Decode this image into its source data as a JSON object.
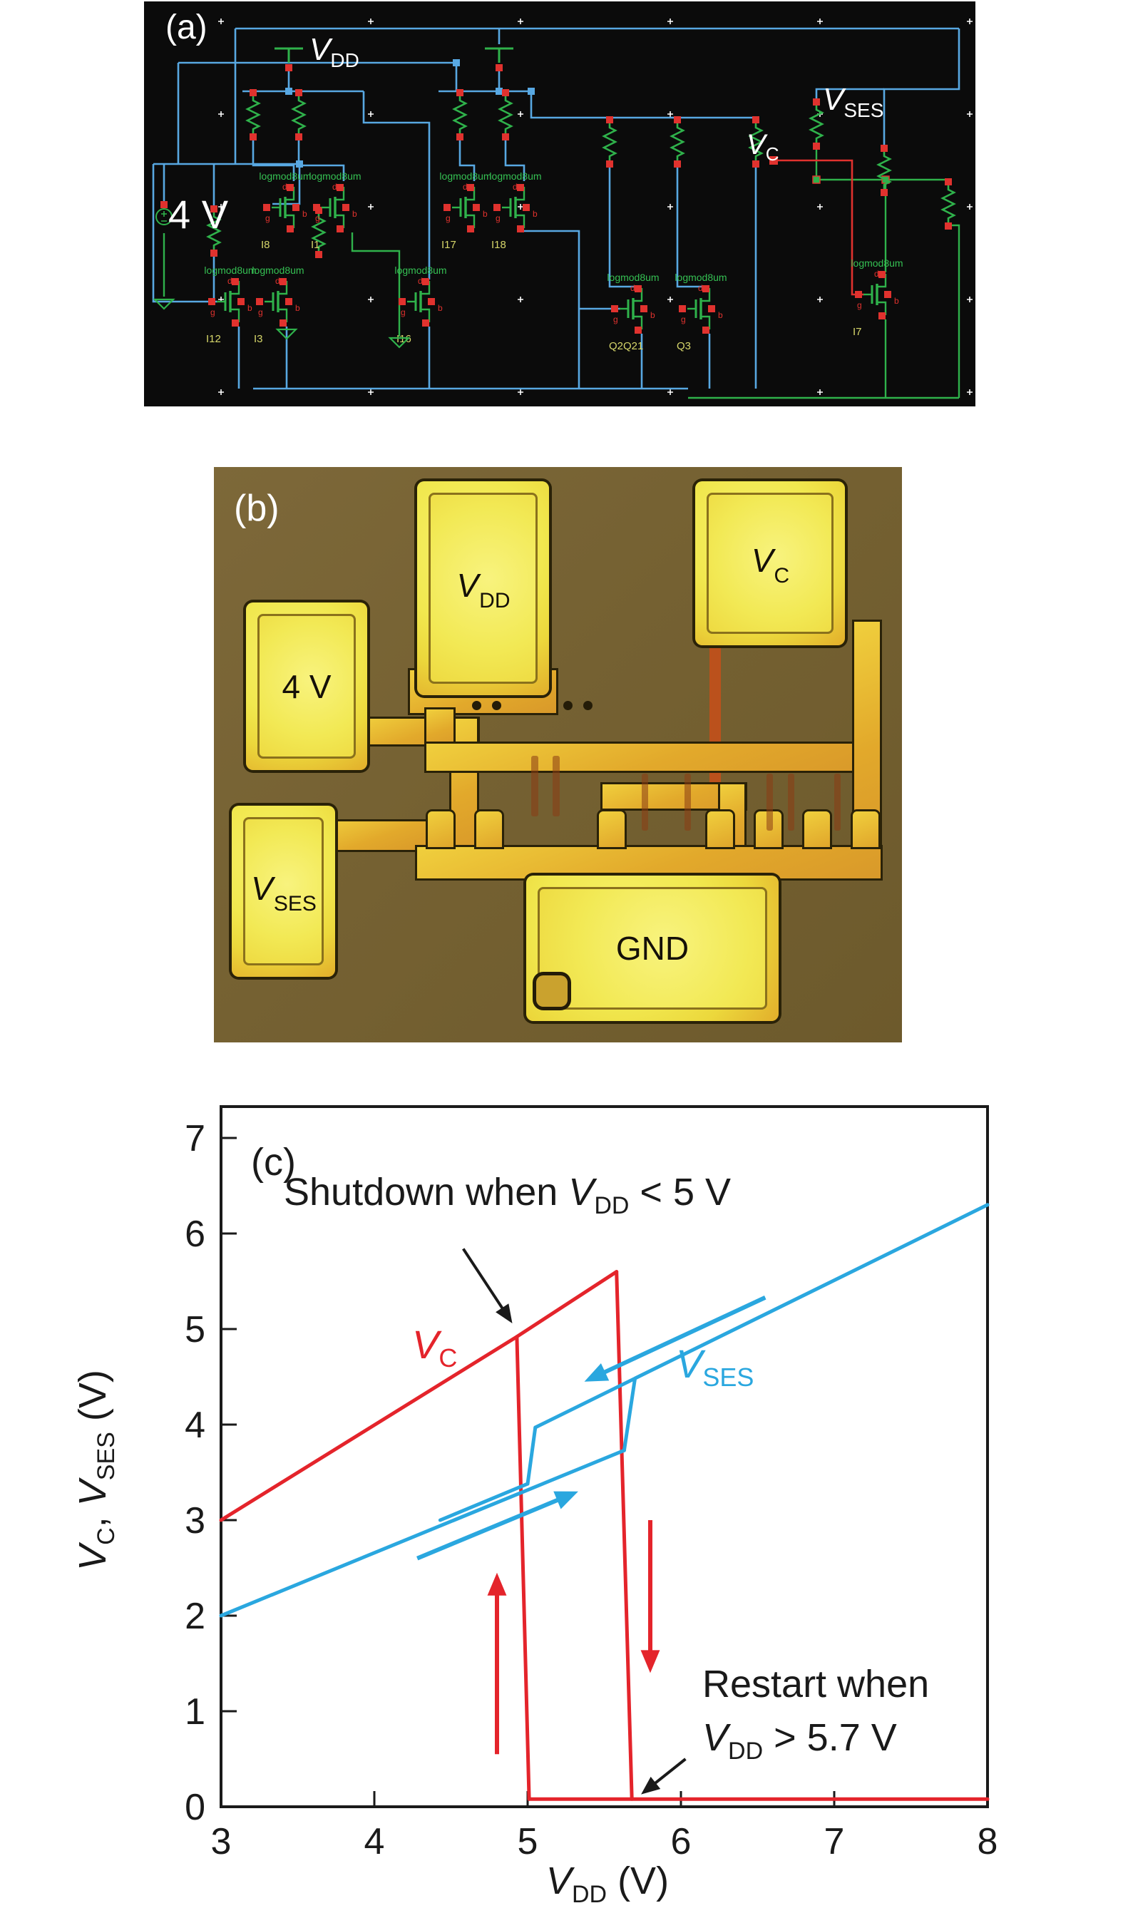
{
  "panel_a": {
    "tag": "(a)",
    "vdd": {
      "v": "V",
      "sub": "DD"
    },
    "source_label": "4 V",
    "vses": {
      "v": "V",
      "sub": "SES"
    },
    "vc": {
      "v": "V",
      "sub": "C"
    },
    "device_label": "logmod8um",
    "instances": [
      "I8",
      "I1",
      "I17",
      "I18",
      "I12",
      "I3",
      "I16",
      "Q2Q21",
      "Q3",
      "I7"
    ],
    "pins": {
      "d": "d",
      "g": "g",
      "b": "b"
    },
    "colors": {
      "bg": "#0b0b0b",
      "wire": "#58a8e2",
      "comp": "#2fb24b",
      "pin": "#e0322e",
      "id": "#d6d66a",
      "text": "#ffffff",
      "label": "#35c053"
    }
  },
  "panel_b": {
    "tag": "(b)",
    "pads": [
      {
        "id": "vdd",
        "v": "V",
        "sub": "DD"
      },
      {
        "id": "vc",
        "v": "V",
        "sub": "C"
      },
      {
        "id": "4v",
        "label": "4 V"
      },
      {
        "id": "vses",
        "v": "V",
        "sub": "SES"
      },
      {
        "id": "gnd",
        "label": "GND"
      }
    ],
    "colors": {
      "bg": "#756132",
      "pad_core": "#f1e84f",
      "pad_ring": "#e2ae2b",
      "outline": "#2a2208",
      "trace": "#e2a92b",
      "red_trace": "#bb511c"
    }
  },
  "chart_data": {
    "type": "line",
    "title": "",
    "panel_tag": "(c)",
    "xlabel": "V_DD (V)",
    "ylabel": "V_C, V_SES (V)",
    "xlim": [
      3,
      8
    ],
    "ylim": [
      0,
      7.33
    ],
    "grid": false,
    "legend_position": "none",
    "x_ticks": [
      "3",
      "4",
      "5",
      "6",
      "7",
      "8"
    ],
    "y_ticks": [
      "0",
      "1",
      "2",
      "3",
      "4",
      "5",
      "6",
      "7"
    ],
    "series": [
      {
        "name": "vc-rising",
        "label": "V_C",
        "color": "#e4242b",
        "points": [
          [
            3,
            3.0
          ],
          [
            4.93,
            4.92
          ],
          [
            5.58,
            5.6
          ]
        ]
      },
      {
        "name": "vc-shutdown-drop",
        "label": "V_C",
        "color": "#e4242b",
        "points": [
          [
            4.93,
            4.92
          ],
          [
            5.01,
            0.08
          ]
        ]
      },
      {
        "name": "vc-restart-drop",
        "label": "V_C",
        "color": "#e4242b",
        "points": [
          [
            5.58,
            5.6
          ],
          [
            5.68,
            0.08
          ]
        ]
      },
      {
        "name": "vc-off-baseline",
        "label": "V_C",
        "color": "#e4242b",
        "points": [
          [
            5.01,
            0.08
          ],
          [
            8,
            0.08
          ]
        ]
      },
      {
        "name": "vses-up-sweep",
        "label": "V_SES",
        "color": "#2aa7df",
        "points": [
          [
            3,
            2.0
          ],
          [
            5.63,
            3.73
          ]
        ]
      },
      {
        "name": "vses-up-jump",
        "label": "V_SES",
        "color": "#2aa7df",
        "points": [
          [
            5.63,
            3.73
          ],
          [
            5.7,
            4.48
          ]
        ]
      },
      {
        "name": "vses-upper",
        "label": "V_SES",
        "color": "#2aa7df",
        "points": [
          [
            5.05,
            3.97
          ],
          [
            8,
            6.3
          ]
        ]
      },
      {
        "name": "vses-down-drop",
        "label": "V_SES",
        "color": "#2aa7df",
        "points": [
          [
            5.05,
            3.97
          ],
          [
            5.0,
            3.38
          ]
        ]
      },
      {
        "name": "vses-return",
        "label": "V_SES",
        "color": "#2aa7df",
        "points": [
          [
            5.0,
            3.38
          ],
          [
            4.43,
            3.0
          ]
        ]
      }
    ],
    "annotations": {
      "shutdown_prefix": "Shutdown when ",
      "shutdown_v": "V",
      "shutdown_sub": "DD",
      "shutdown_suffix": " < 5 V",
      "restart_line1": "Restart when",
      "restart_v": "V",
      "restart_sub": "DD",
      "restart_suffix": " > 5.7 V",
      "vc_v": "V",
      "vc_sub": "C",
      "vses_v": "V",
      "vses_sub": "SES",
      "xlabel_v": "V",
      "xlabel_sub": "DD",
      "xlabel_suffix": " (V)",
      "ylabel_v1": "V",
      "ylabel_sub1": "C",
      "ylabel_mid": ", ",
      "ylabel_v2": "V",
      "ylabel_sub2": "SES",
      "ylabel_suffix": " (V)",
      "arrows": [
        {
          "name": "red-up-sweep-arrow",
          "from": [
            4.8,
            0.55
          ],
          "to": [
            4.8,
            2.45
          ],
          "color": "#e4242b",
          "w": 6,
          "head": 32
        },
        {
          "name": "red-down-sweep-arrow",
          "from": [
            5.8,
            3.0
          ],
          "to": [
            5.8,
            1.4
          ],
          "color": "#e4242b",
          "w": 6,
          "head": 32
        },
        {
          "name": "blue-left-sweep-arrow",
          "from": [
            6.55,
            5.33
          ],
          "to": [
            5.37,
            4.45
          ],
          "color": "#2aa7df",
          "w": 6,
          "head": 32
        },
        {
          "name": "blue-right-sweep-arrow",
          "from": [
            4.28,
            2.6
          ],
          "to": [
            5.33,
            3.3
          ],
          "color": "#2aa7df",
          "w": 6,
          "head": 32
        },
        {
          "name": "shutdown-pointer-arrow",
          "from": [
            4.58,
            5.84
          ],
          "to": [
            4.9,
            5.06
          ],
          "color": "#1a1a1a",
          "w": 4,
          "head": 26
        },
        {
          "name": "restart-pointer-arrow",
          "from": [
            6.03,
            0.5
          ],
          "to": [
            5.74,
            0.13
          ],
          "color": "#1a1a1a",
          "w": 4,
          "head": 26
        }
      ]
    }
  }
}
